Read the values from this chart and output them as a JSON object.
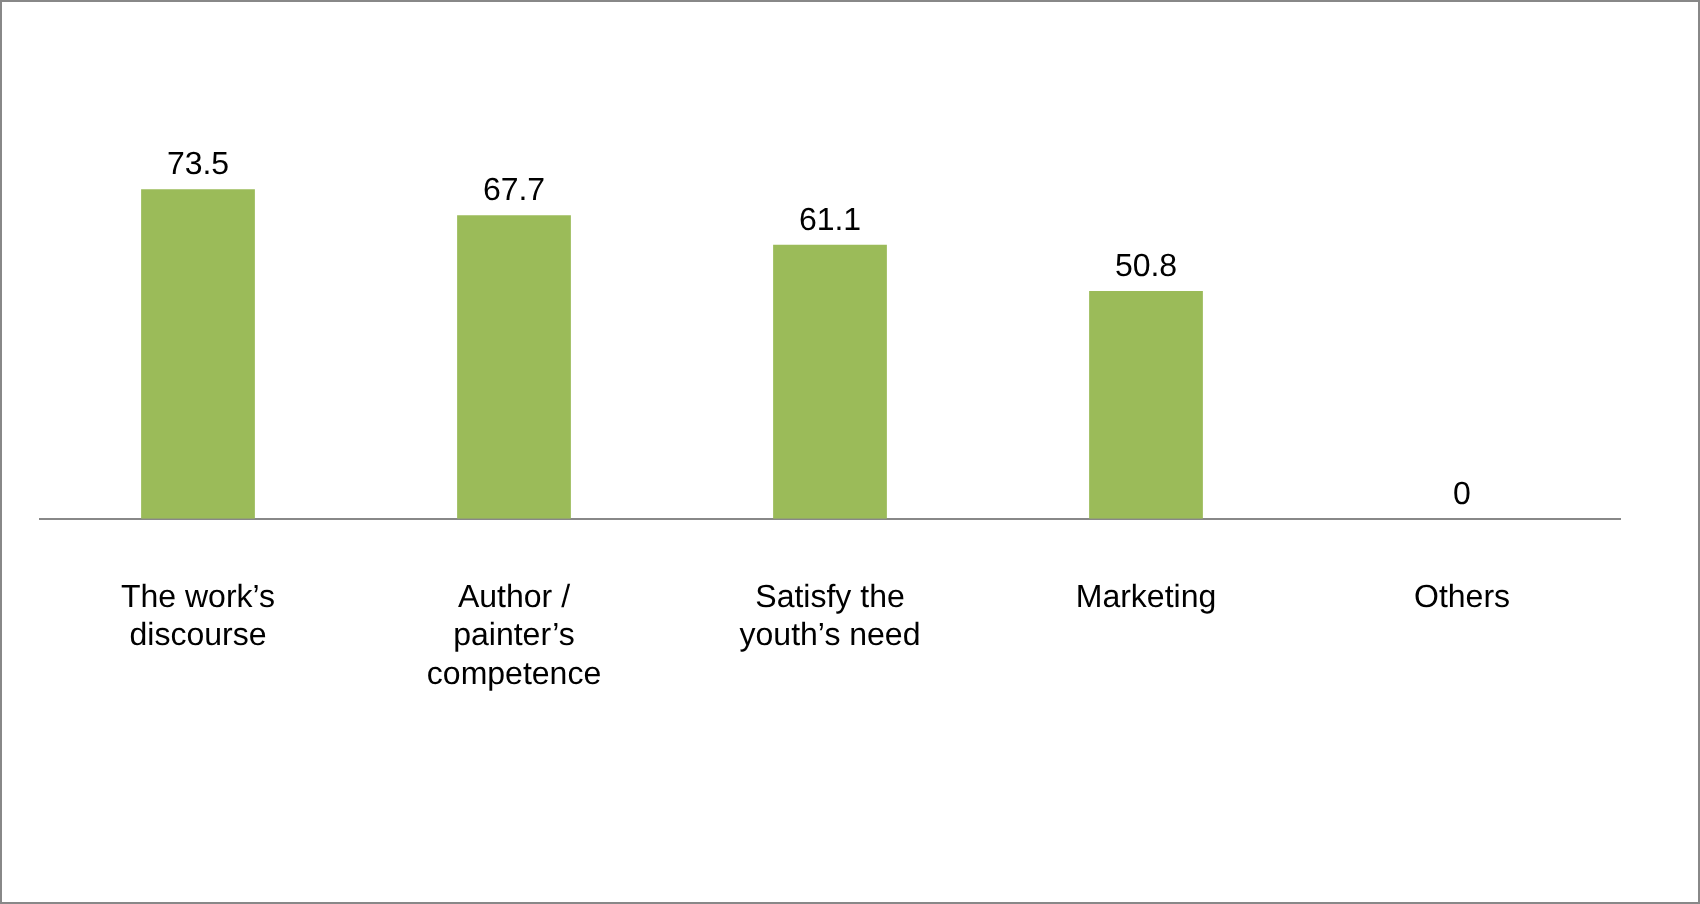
{
  "chart_data": {
    "type": "bar",
    "categories": [
      "The work’s discourse",
      "Author / painter’s competence",
      "Satisfy the youth’s need",
      "Marketing",
      "Others"
    ],
    "values": [
      73.5,
      67.7,
      61.1,
      50.8,
      0
    ],
    "color": "#9bbb59",
    "data_labels": true,
    "grid": false,
    "legend": false
  }
}
